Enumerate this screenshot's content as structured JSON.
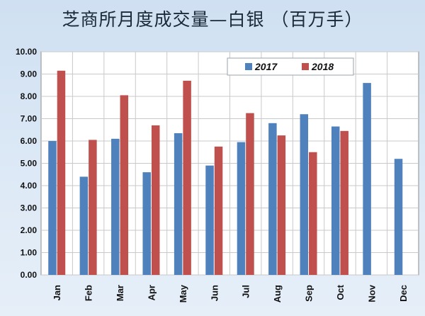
{
  "chart_data": {
    "type": "bar",
    "title": "芝商所月度成交量—白银 （百万手）",
    "categories": [
      "Jan",
      "Feb",
      "Mar",
      "Apr",
      "May",
      "Jun",
      "Jul",
      "Aug",
      "Sep",
      "Oct",
      "Nov",
      "Dec"
    ],
    "series": [
      {
        "name": "2017",
        "color": "#4f81bd",
        "values": [
          6.0,
          4.4,
          6.1,
          4.6,
          6.35,
          4.9,
          5.95,
          6.8,
          7.2,
          6.65,
          8.6,
          5.2
        ]
      },
      {
        "name": "2018",
        "color": "#c0504d",
        "values": [
          9.15,
          6.05,
          8.05,
          6.7,
          8.7,
          5.75,
          7.25,
          6.25,
          5.5,
          6.45,
          null,
          null
        ]
      }
    ],
    "y_ticks": [
      "0.00",
      "1.00",
      "2.00",
      "3.00",
      "4.00",
      "5.00",
      "6.00",
      "7.00",
      "8.00",
      "9.00",
      "10.00"
    ],
    "ylim": [
      0,
      10
    ],
    "grid": true,
    "legend_position": "top-right"
  }
}
